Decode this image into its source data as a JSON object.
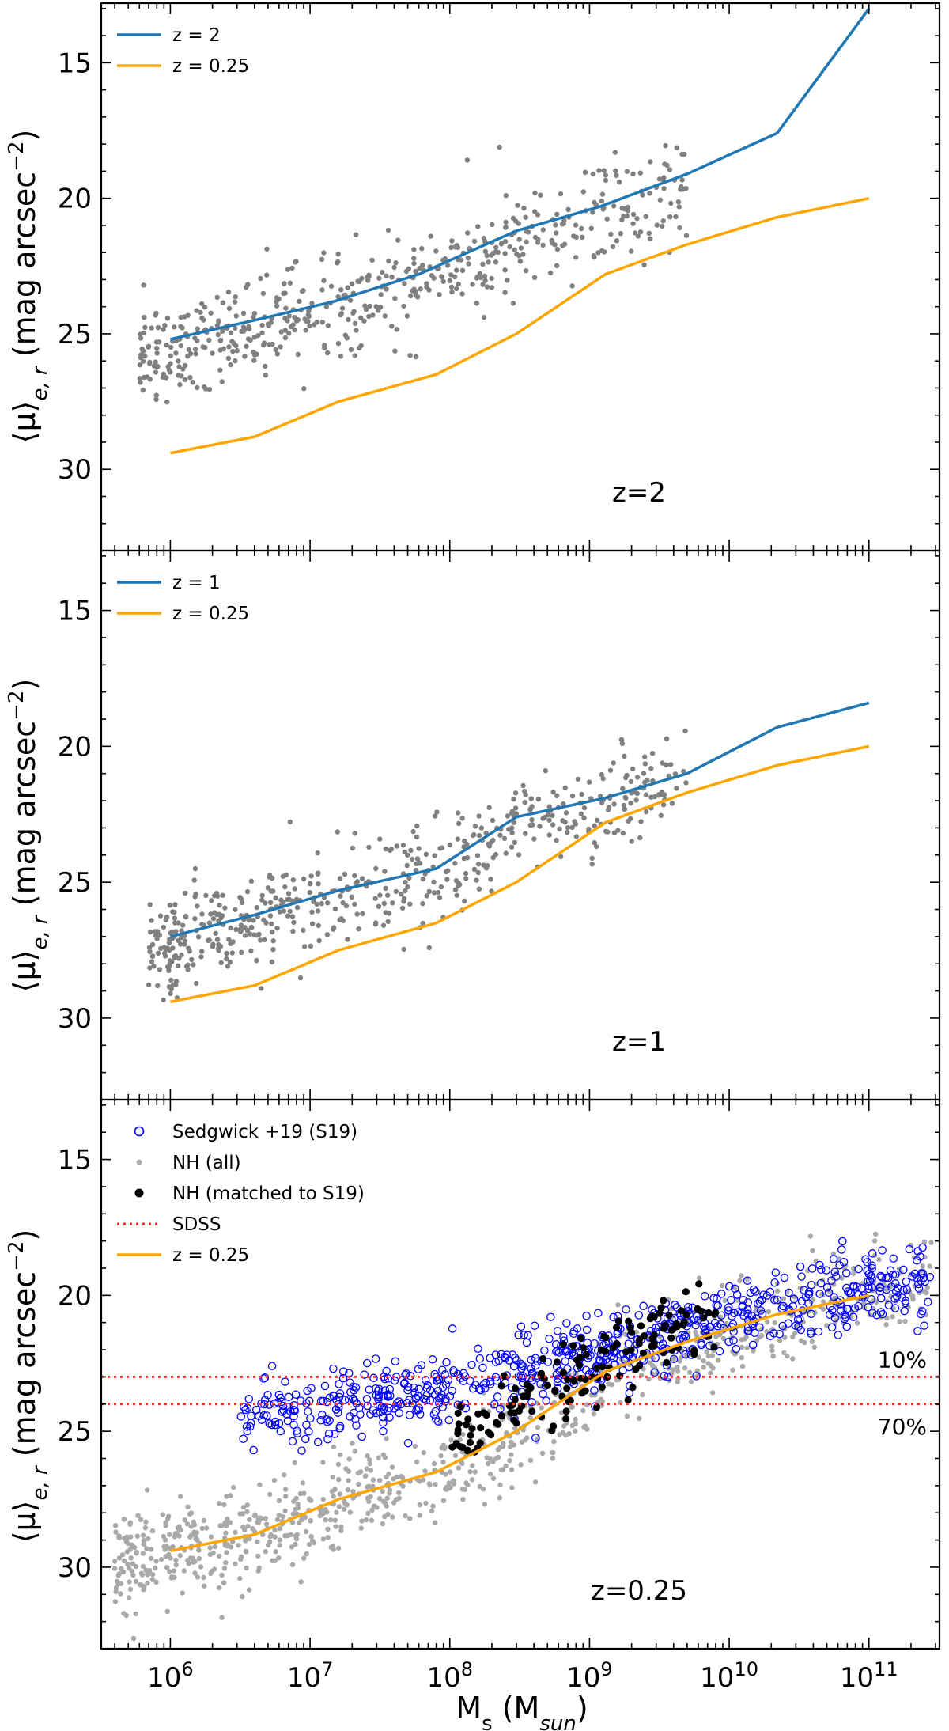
{
  "figure": {
    "xlabel_main": "M",
    "xlabel_sub": "s",
    "xlabel_unit_open": " (M",
    "xlabel_unit_sub": "sun",
    "xlabel_unit_close": ")",
    "ylabel_prefix": "⟨μ⟩",
    "ylabel_sub": "e, r",
    "ylabel_suffix": " (mag arcsec",
    "ylabel_exp": "−2",
    "ylabel_close": ")"
  },
  "colors": {
    "blue_line": "#1f77b4",
    "orange_line": "#ffa500",
    "gray_points": "#808080",
    "light_gray_points": "#a9a9a9",
    "blue_circles": "#0000ff",
    "black_points": "#000000",
    "sdss_line": "#ff3333"
  },
  "chart_data": [
    {
      "type": "scatter",
      "annotation": "z=2",
      "xscale": "log",
      "xlim": [
        320000.0,
        320000000000.0
      ],
      "ylim": [
        33,
        12.8
      ],
      "yticks": [
        15,
        20,
        25,
        30
      ],
      "xticks": [
        "10^6",
        "10^7",
        "10^8",
        "10^9",
        "10^10",
        "10^11"
      ],
      "legend": [
        {
          "label": "z = 2",
          "kind": "line",
          "color": "#1f77b4"
        },
        {
          "label": "z = 0.25",
          "kind": "line",
          "color": "#ffa500"
        }
      ],
      "series": [
        {
          "name": "z = 2",
          "kind": "line",
          "color": "#1f77b4",
          "x": [
            1000000.0,
            4000000.0,
            15000000.0,
            60000000.0,
            300000000.0,
            1200000000.0,
            5000000000.0,
            22000000000.0,
            100000000000.0
          ],
          "y": [
            25.2,
            24.5,
            23.8,
            22.8,
            21.2,
            20.3,
            19.1,
            17.6,
            13.0
          ]
        },
        {
          "name": "z = 0.25",
          "kind": "line",
          "color": "#ffa500",
          "x": [
            1000000.0,
            4000000.0,
            16000000.0,
            80000000.0,
            300000000.0,
            1300000000.0,
            5000000000.0,
            22000000000.0,
            100000000000.0
          ],
          "y": [
            29.4,
            28.8,
            27.5,
            26.5,
            25.0,
            22.8,
            21.7,
            20.7,
            20.0
          ]
        },
        {
          "name": "NH (all)",
          "kind": "points",
          "color": "#808080",
          "n": 560,
          "trend_x": [
            600000.0,
            4000000.0,
            15000000.0,
            60000000.0,
            300000000.0,
            1200000000.0,
            5000000000.0
          ],
          "trend_y": [
            25.8,
            24.8,
            24.0,
            23.0,
            21.4,
            20.6,
            19.4
          ],
          "scatter": 1.1
        }
      ]
    },
    {
      "type": "scatter",
      "annotation": "z=1",
      "xscale": "log",
      "xlim": [
        320000.0,
        320000000000.0
      ],
      "ylim": [
        33,
        12.8
      ],
      "yticks": [
        15,
        20,
        25,
        30
      ],
      "xticks": [
        "10^6",
        "10^7",
        "10^8",
        "10^9",
        "10^10",
        "10^11"
      ],
      "legend": [
        {
          "label": "z = 1",
          "kind": "line",
          "color": "#1f77b4"
        },
        {
          "label": "z = 0.25",
          "kind": "line",
          "color": "#ffa500"
        }
      ],
      "series": [
        {
          "name": "z = 1",
          "kind": "line",
          "color": "#1f77b4",
          "x": [
            1000000.0,
            4000000.0,
            16000000.0,
            80000000.0,
            300000000.0,
            1300000000.0,
            5000000000.0,
            22000000000.0,
            100000000000.0
          ],
          "y": [
            27.0,
            26.2,
            25.3,
            24.5,
            22.6,
            21.9,
            21.0,
            19.3,
            18.4
          ]
        },
        {
          "name": "z = 0.25",
          "kind": "line",
          "color": "#ffa500",
          "x": [
            1000000.0,
            4000000.0,
            16000000.0,
            80000000.0,
            300000000.0,
            1300000000.0,
            5000000000.0,
            22000000000.0,
            100000000000.0
          ],
          "y": [
            29.4,
            28.8,
            27.5,
            26.5,
            25.0,
            22.8,
            21.7,
            20.7,
            20.0
          ]
        },
        {
          "name": "NH (all)",
          "kind": "points",
          "color": "#808080",
          "n": 560,
          "trend_x": [
            700000.0,
            4000000.0,
            16000000.0,
            80000000.0,
            300000000.0,
            1300000000.0,
            5000000000.0
          ],
          "trend_y": [
            27.3,
            26.3,
            25.4,
            24.6,
            22.8,
            22.0,
            21.2
          ],
          "scatter": 1.0
        }
      ]
    },
    {
      "type": "scatter",
      "annotation": "z=0.25",
      "xscale": "log",
      "xlim": [
        320000.0,
        320000000000.0
      ],
      "ylim": [
        33,
        12.8
      ],
      "yticks": [
        15,
        20,
        25,
        30
      ],
      "xticks": [
        "10^6",
        "10^7",
        "10^8",
        "10^9",
        "10^10",
        "10^11"
      ],
      "legend": [
        {
          "label": "Sedgwick +19 (S19)",
          "kind": "open-circle",
          "color": "#0000ff"
        },
        {
          "label": "NH (all)",
          "kind": "small-point",
          "color": "#a9a9a9"
        },
        {
          "label": "NH (matched to S19)",
          "kind": "point",
          "color": "#000000"
        },
        {
          "label": "SDSS",
          "kind": "dotted",
          "color": "#ff3333"
        },
        {
          "label": "z = 0.25",
          "kind": "line",
          "color": "#ffa500"
        }
      ],
      "hlines": [
        {
          "y": 23.0,
          "label": "10%",
          "color": "#ff3333"
        },
        {
          "y": 24.0,
          "label": "70%",
          "color": "#ff3333"
        }
      ],
      "series": [
        {
          "name": "z = 0.25",
          "kind": "line",
          "color": "#ffa500",
          "x": [
            1000000.0,
            4000000.0,
            16000000.0,
            80000000.0,
            300000000.0,
            1300000000.0,
            5000000000.0,
            22000000000.0,
            100000000000.0
          ],
          "y": [
            29.4,
            28.8,
            27.5,
            26.5,
            25.0,
            22.8,
            21.7,
            20.7,
            20.0
          ]
        },
        {
          "name": "NH (all)",
          "kind": "points",
          "color": "#a9a9a9",
          "n": 950,
          "trend_x": [
            400000.0,
            1000000.0,
            4000000.0,
            16000000.0,
            80000000.0,
            300000000.0,
            1300000000.0,
            5000000000.0,
            22000000000.0,
            100000000000.0,
            280000000000.0
          ],
          "trend_y": [
            29.8,
            29.4,
            28.8,
            27.5,
            26.5,
            25.0,
            22.8,
            21.7,
            20.7,
            20.0,
            19.6
          ],
          "scatter": 1.0
        },
        {
          "name": "Sedgwick +19 (S19)",
          "kind": "open-circles",
          "color": "#0000ff",
          "n": 720,
          "trend_x": [
            3000000.0,
            20000000.0,
            100000000.0,
            400000000.0,
            1500000000.0,
            6000000000.0,
            25000000000.0,
            100000000000.0,
            280000000000.0
          ],
          "trend_y": [
            24.5,
            23.8,
            23.2,
            22.7,
            21.8,
            21.0,
            20.3,
            19.7,
            19.3
          ],
          "scatter": 0.8
        },
        {
          "name": "NH (matched to S19)",
          "kind": "points",
          "color": "#000000",
          "n": 150,
          "trend_x": [
            100000000.0,
            300000000.0,
            1000000000.0,
            3000000000.0,
            8000000000.0
          ],
          "trend_y": [
            25.3,
            23.8,
            22.5,
            21.6,
            21.0
          ],
          "scatter": 0.9
        }
      ]
    }
  ]
}
